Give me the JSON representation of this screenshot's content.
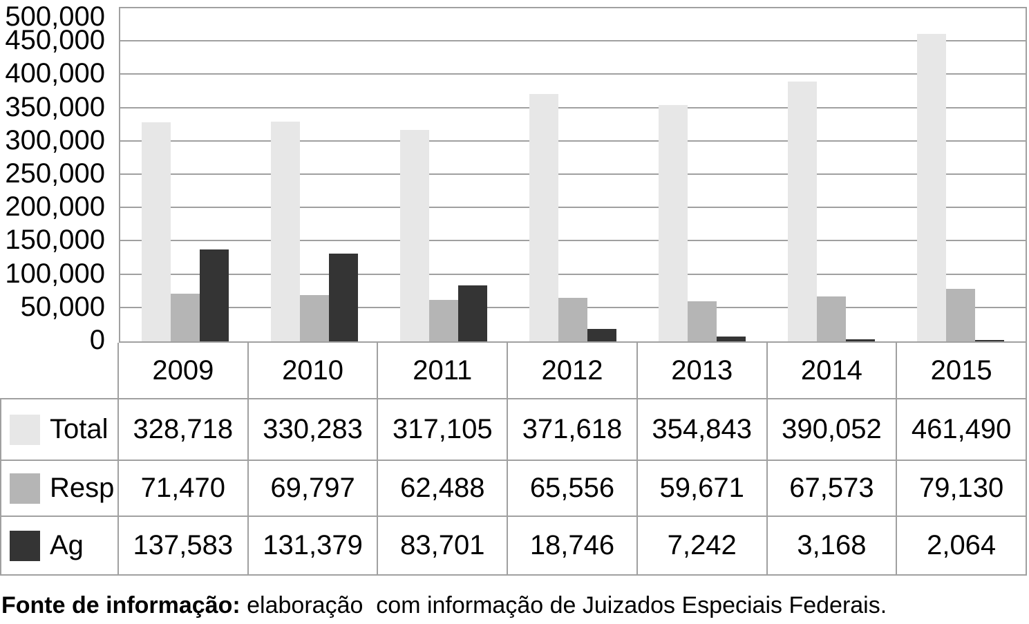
{
  "chart_data": {
    "type": "bar",
    "title": "",
    "xlabel": "",
    "ylabel": "",
    "categories": [
      "2009",
      "2010",
      "2011",
      "2012",
      "2013",
      "2014",
      "2015"
    ],
    "series": [
      {
        "name": "Total",
        "color": "#e7e7e7",
        "values": [
          328718,
          330283,
          317105,
          371618,
          354843,
          390052,
          461490
        ]
      },
      {
        "name": "Resp",
        "color": "#b5b5b5",
        "values": [
          71470,
          69797,
          62488,
          65556,
          59671,
          67573,
          79130
        ]
      },
      {
        "name": "Ag",
        "color": "#343434",
        "values": [
          137583,
          131379,
          83701,
          18746,
          7242,
          3168,
          2064
        ]
      }
    ],
    "ylim": [
      0,
      500000
    ],
    "ytick_step": 50000,
    "ytick_labels": [
      "500,000",
      "450,000",
      "400,000",
      "350,000",
      "300,000",
      "250,000",
      "200,000",
      "150,000",
      "100,000",
      "50,000",
      "0"
    ],
    "grid": true,
    "legend_position": "data-table-left"
  },
  "table": {
    "rows": [
      {
        "label": "Total",
        "values": [
          "328,718",
          "330,283",
          "317,105",
          "371,618",
          "354,843",
          "390,052",
          "461,490"
        ]
      },
      {
        "label": "Resp",
        "values": [
          "71,470",
          "69,797",
          "62,488",
          "65,556",
          "59,671",
          "67,573",
          "79,130"
        ]
      },
      {
        "label": "Ag",
        "values": [
          "137,583",
          "131,379",
          "83,701",
          "18,746",
          "7,242",
          "3,168",
          "2,064"
        ]
      }
    ]
  },
  "footer": {
    "bold": "Fonte de informação:",
    "text": " elaboração  com informação de Juizados Especiais Federais."
  },
  "colors": {
    "background": "#ffffff",
    "grid_line": "#a0a0a0",
    "table_border": "#a0a0a0",
    "text": "#000000",
    "series_total": "#e7e7e7",
    "series_resp": "#b5b5b5",
    "series_ag": "#343434"
  }
}
